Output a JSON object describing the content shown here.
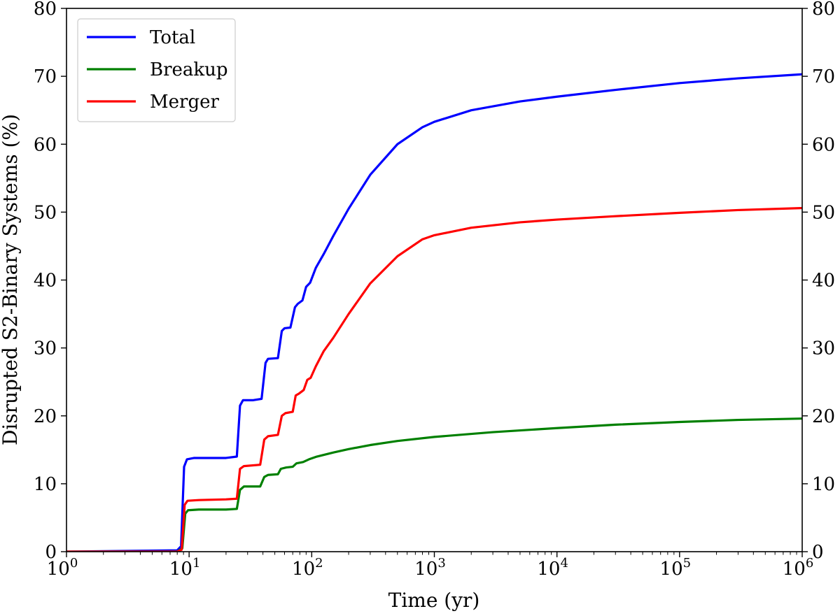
{
  "chart_data": {
    "type": "line",
    "xlabel": "Time (yr)",
    "ylabel": "Disrupted S2-Binary Systems (%)",
    "x_scale": "log",
    "xlim": [
      1,
      1000000
    ],
    "ylim": [
      0,
      80
    ],
    "x_ticks": [
      {
        "base": "10",
        "exp": "0",
        "value": 1
      },
      {
        "base": "10",
        "exp": "1",
        "value": 10
      },
      {
        "base": "10",
        "exp": "2",
        "value": 100
      },
      {
        "base": "10",
        "exp": "3",
        "value": 1000
      },
      {
        "base": "10",
        "exp": "4",
        "value": 10000
      },
      {
        "base": "10",
        "exp": "5",
        "value": 100000
      },
      {
        "base": "10",
        "exp": "6",
        "value": 1000000
      }
    ],
    "y_ticks": [
      "0",
      "10",
      "20",
      "30",
      "40",
      "50",
      "60",
      "70",
      "80"
    ],
    "right_y_ticks": [
      "0",
      "10",
      "20",
      "30",
      "40",
      "50",
      "60",
      "70",
      "80"
    ],
    "grid": false,
    "legend_position": "top-left",
    "series": [
      {
        "name": "Total",
        "color": "#0000ff",
        "points": [
          [
            1,
            0
          ],
          [
            8,
            0.2
          ],
          [
            8.6,
            0.8
          ],
          [
            9.1,
            12.5
          ],
          [
            9.6,
            13.6
          ],
          [
            11,
            13.8
          ],
          [
            15,
            13.8
          ],
          [
            20,
            13.8
          ],
          [
            24.5,
            14
          ],
          [
            26,
            21.5
          ],
          [
            27.5,
            22.3
          ],
          [
            33,
            22.3
          ],
          [
            39,
            22.5
          ],
          [
            42,
            27.8
          ],
          [
            44,
            28.4
          ],
          [
            53,
            28.5
          ],
          [
            57,
            32.5
          ],
          [
            60,
            32.9
          ],
          [
            67,
            33
          ],
          [
            73,
            36
          ],
          [
            77,
            36.5
          ],
          [
            84,
            37
          ],
          [
            90,
            39
          ],
          [
            97,
            39.6
          ],
          [
            108,
            41.8
          ],
          [
            125,
            43.8
          ],
          [
            150,
            46.5
          ],
          [
            200,
            50.5
          ],
          [
            300,
            55.5
          ],
          [
            500,
            60
          ],
          [
            800,
            62.5
          ],
          [
            1000,
            63.3
          ],
          [
            2000,
            65
          ],
          [
            5000,
            66.3
          ],
          [
            10000,
            67
          ],
          [
            30000,
            68
          ],
          [
            100000,
            69
          ],
          [
            300000,
            69.7
          ],
          [
            1000000,
            70.3
          ]
        ]
      },
      {
        "name": "Breakup",
        "color": "#008000",
        "points": [
          [
            1,
            0
          ],
          [
            8,
            0
          ],
          [
            8.8,
            0.5
          ],
          [
            9.3,
            5.6
          ],
          [
            9.8,
            6.1
          ],
          [
            12,
            6.2
          ],
          [
            20,
            6.2
          ],
          [
            24.5,
            6.3
          ],
          [
            26,
            9.1
          ],
          [
            28,
            9.6
          ],
          [
            38,
            9.6
          ],
          [
            41,
            11
          ],
          [
            44,
            11.3
          ],
          [
            53,
            11.4
          ],
          [
            56,
            12.2
          ],
          [
            62,
            12.4
          ],
          [
            70,
            12.5
          ],
          [
            75,
            13
          ],
          [
            85,
            13.2
          ],
          [
            95,
            13.6
          ],
          [
            110,
            14
          ],
          [
            150,
            14.6
          ],
          [
            200,
            15.1
          ],
          [
            300,
            15.7
          ],
          [
            500,
            16.3
          ],
          [
            1000,
            16.9
          ],
          [
            3000,
            17.6
          ],
          [
            10000,
            18.2
          ],
          [
            30000,
            18.7
          ],
          [
            100000,
            19.1
          ],
          [
            300000,
            19.4
          ],
          [
            1000000,
            19.6
          ]
        ]
      },
      {
        "name": "Merger",
        "color": "#ff0000",
        "points": [
          [
            1,
            0
          ],
          [
            8,
            0
          ],
          [
            8.7,
            0.3
          ],
          [
            9.2,
            6.9
          ],
          [
            9.7,
            7.5
          ],
          [
            12,
            7.6
          ],
          [
            20,
            7.7
          ],
          [
            24.5,
            7.8
          ],
          [
            26,
            12.2
          ],
          [
            28,
            12.6
          ],
          [
            38,
            12.8
          ],
          [
            41,
            16.5
          ],
          [
            44,
            17
          ],
          [
            53,
            17.2
          ],
          [
            57,
            20
          ],
          [
            61,
            20.4
          ],
          [
            70,
            20.6
          ],
          [
            74,
            23
          ],
          [
            79,
            23.3
          ],
          [
            86,
            23.8
          ],
          [
            92,
            25.3
          ],
          [
            98,
            25.6
          ],
          [
            108,
            27.3
          ],
          [
            125,
            29.5
          ],
          [
            150,
            31.5
          ],
          [
            200,
            35
          ],
          [
            300,
            39.5
          ],
          [
            500,
            43.5
          ],
          [
            800,
            46
          ],
          [
            1000,
            46.6
          ],
          [
            2000,
            47.7
          ],
          [
            5000,
            48.5
          ],
          [
            10000,
            48.9
          ],
          [
            30000,
            49.4
          ],
          [
            100000,
            49.9
          ],
          [
            300000,
            50.3
          ],
          [
            1000000,
            50.6
          ]
        ]
      }
    ]
  }
}
